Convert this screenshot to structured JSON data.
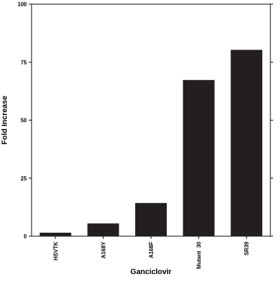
{
  "chart_data": {
    "type": "bar",
    "title": "",
    "xlabel": "Ganciclovir",
    "ylabel": "Fold Increase",
    "categories": [
      "HSVTK",
      "A168Y",
      "A168F",
      "Mutant  30",
      "SR39"
    ],
    "values": [
      1.5,
      5.5,
      14.3,
      67.3,
      80.3
    ],
    "ylim": [
      0,
      100
    ],
    "yticks": [
      0,
      25,
      50,
      75,
      100
    ],
    "grid": false,
    "legend": "none",
    "bar_color": "#231f20",
    "axis_color": "#000000"
  }
}
